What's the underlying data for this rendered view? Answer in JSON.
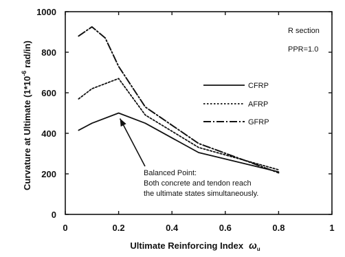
{
  "chart_data": {
    "type": "line",
    "xlabel": "Ultimate Reinforcing Index",
    "xlabel_symbol": "ω",
    "xlabel_symbol_sub": "u",
    "ylabel": "Curvature at Ultimate  (1*10",
    "ylabel_exp": "-6",
    "ylabel_unit": "rad/in)",
    "xlim": [
      0,
      1
    ],
    "ylim": [
      0,
      1000
    ],
    "x_ticks": [
      0,
      0.2,
      0.4,
      0.6,
      0.8,
      1
    ],
    "x_tick_labels": [
      "0",
      "0.2",
      "0.4",
      "0.6",
      "0.8",
      "1"
    ],
    "y_ticks": [
      0,
      200,
      400,
      600,
      800,
      1000
    ],
    "y_tick_labels": [
      "0",
      "200",
      "400",
      "600",
      "800",
      "1000"
    ],
    "grid": false,
    "legend_position": "right",
    "series": [
      {
        "name": "CFRP",
        "style": "solid",
        "x": [
          0.05,
          0.1,
          0.2,
          0.3,
          0.5,
          0.8
        ],
        "y": [
          415,
          450,
          500,
          450,
          305,
          210
        ]
      },
      {
        "name": "AFRP",
        "style": "dotted",
        "x": [
          0.05,
          0.1,
          0.2,
          0.3,
          0.5,
          0.8
        ],
        "y": [
          570,
          620,
          670,
          490,
          330,
          220
        ]
      },
      {
        "name": "GFRP",
        "style": "dashdot",
        "x": [
          0.05,
          0.1,
          0.15,
          0.2,
          0.3,
          0.5,
          0.8
        ],
        "y": [
          880,
          925,
          870,
          730,
          530,
          350,
          205
        ]
      }
    ],
    "annotations": {
      "section": "R section",
      "ppr": "PPR=1.0",
      "balanced_title": "Balanced Point:",
      "balanced_line1": "Both concrete and tendon reach",
      "balanced_line2": "the ultimate states simultaneously.",
      "arrow_target": {
        "x": 0.2,
        "y": 500
      }
    }
  }
}
